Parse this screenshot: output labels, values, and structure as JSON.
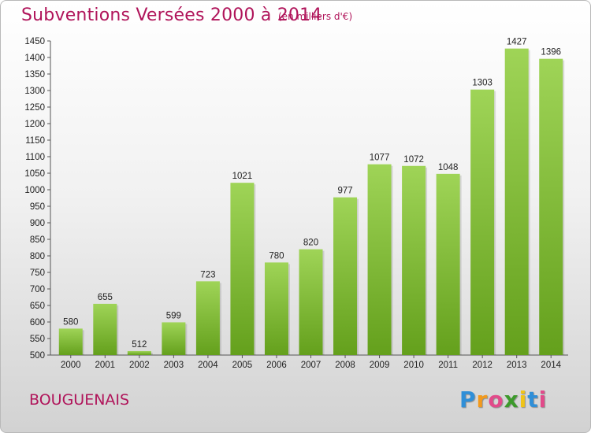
{
  "title": "Subventions Versées 2000 à 2014",
  "subtitle": "(en milliers d'€)",
  "commune": "BOUGUENAIS",
  "logo": {
    "letters": [
      "P",
      "r",
      "o",
      "x",
      "i",
      "t",
      "i"
    ],
    "colors": [
      "#2f8fd8",
      "#f39a1c",
      "#e24a8a",
      "#3c9a2b",
      "#f0c419",
      "#2f8fd8",
      "#e24a8a"
    ]
  },
  "colors": {
    "bar_top": "#9fd457",
    "bar_bottom": "#64a01c",
    "accent": "#b0145a"
  },
  "chart_data": {
    "type": "bar",
    "categories": [
      "2000",
      "2001",
      "2002",
      "2003",
      "2004",
      "2005",
      "2006",
      "2007",
      "2008",
      "2009",
      "2010",
      "2011",
      "2012",
      "2013",
      "2014"
    ],
    "values": [
      580,
      655,
      512,
      599,
      723,
      1021,
      780,
      820,
      977,
      1077,
      1072,
      1048,
      1303,
      1427,
      1396
    ],
    "title": "Subventions Versées 2000 à 2014",
    "ylabel": "",
    "xlabel": "",
    "ylim": [
      500,
      1450
    ],
    "yticks": [
      500,
      550,
      600,
      650,
      700,
      750,
      800,
      850,
      900,
      950,
      1000,
      1050,
      1100,
      1150,
      1200,
      1250,
      1300,
      1350,
      1400,
      1450
    ],
    "grid": false
  }
}
